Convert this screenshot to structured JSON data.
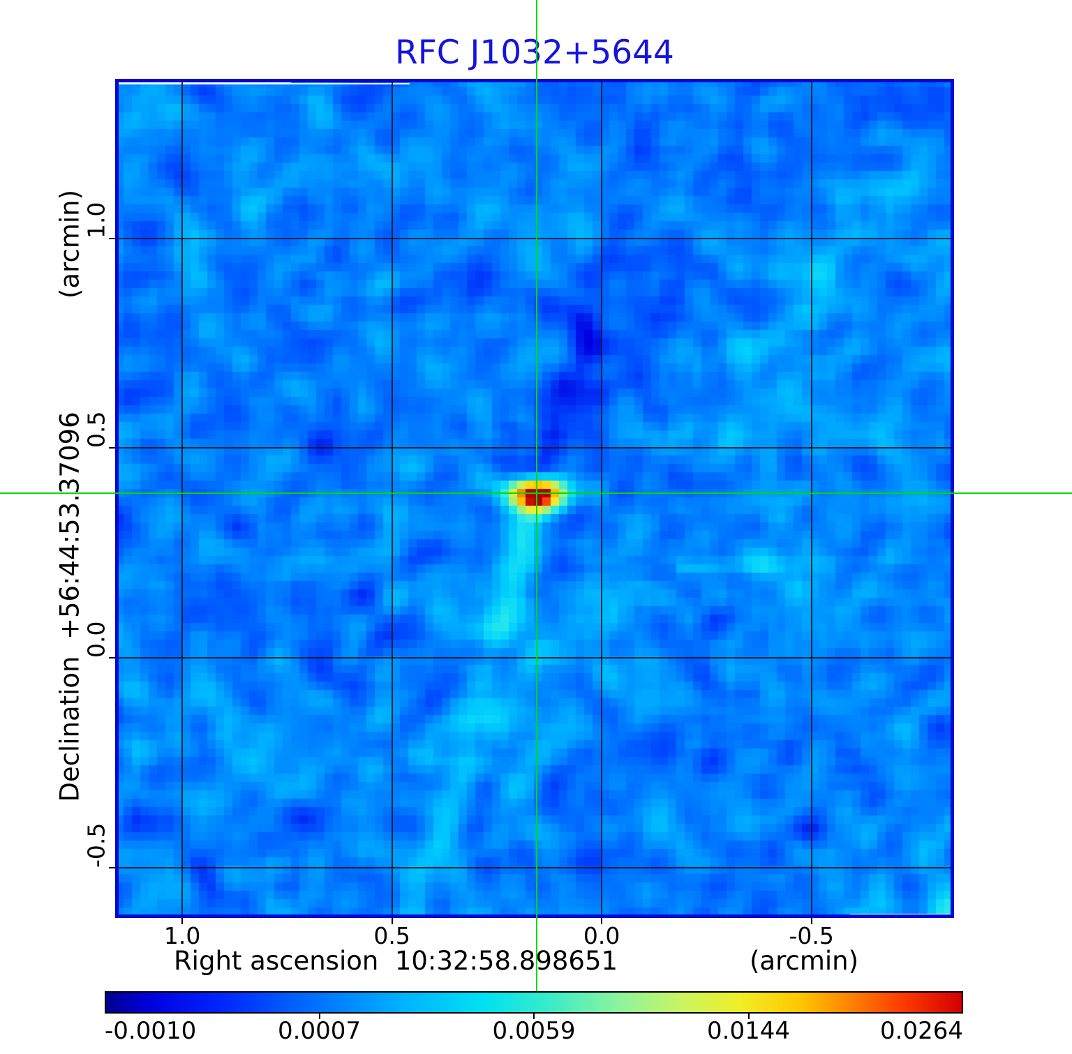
{
  "chart_data": {
    "type": "heatmap",
    "title": "RFC J1032+5644",
    "xlabel": "Right ascension  10:32:58.898651",
    "xunit": "(arcmin)",
    "ylabel": "Declination  +56:44:53.37096",
    "yunit": "(arcmin)",
    "xlim": [
      1.16,
      -0.84
    ],
    "ylim": [
      1.38,
      -0.62
    ],
    "x_ticks": [
      {
        "value": 1.0,
        "label": "1.0"
      },
      {
        "value": 0.5,
        "label": "0.5"
      },
      {
        "value": 0.0,
        "label": "0.0"
      },
      {
        "value": -0.5,
        "label": "-0.5"
      }
    ],
    "y_ticks": [
      {
        "value": 1.0,
        "label": "1.0"
      },
      {
        "value": 0.5,
        "label": "0.5"
      },
      {
        "value": 0.0,
        "label": "0.0"
      },
      {
        "value": -0.5,
        "label": "-0.5"
      }
    ],
    "grid": true,
    "source_name": "RFC J1032+5644",
    "source_position_arcmin": {
      "x": 0.155,
      "y": 0.392
    },
    "crosshair_color": "#00da00",
    "title_color": "#1414e0",
    "colorbar": {
      "colormap": "jet",
      "min": -0.001,
      "max": 0.0264,
      "tick_labels": [
        "-0.0010",
        "0.0007",
        "0.0059",
        "0.0144",
        "0.0264"
      ],
      "tick_values": [
        -0.001,
        0.0007,
        0.0059,
        0.0144,
        0.0264
      ],
      "left_color": "#000090",
      "right_color": "#d20000"
    }
  }
}
